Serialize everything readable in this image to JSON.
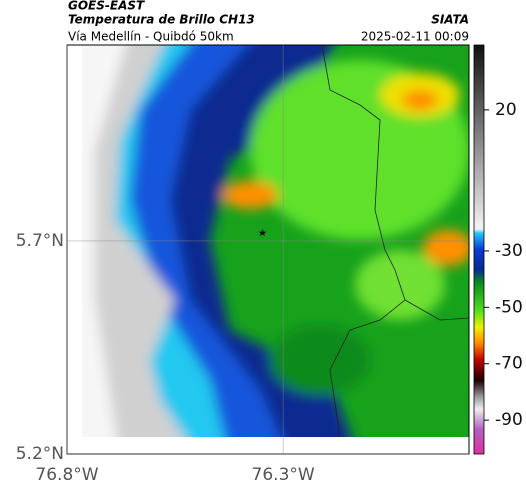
{
  "header": {
    "title": "GOES-EAST",
    "subtitle": "Temperatura de Brillo CH13",
    "route": "Vía Medellín - Quibdó 50km",
    "source": "SIATA",
    "timestamp": "2025-02-11 00:09"
  },
  "map": {
    "lat_lim": [
      5.2,
      6.16
    ],
    "lon_lim": [
      -76.8,
      -75.87
    ],
    "lat_ticks": [
      {
        "value": 5.2,
        "label": "5.2°N"
      },
      {
        "value": 5.7,
        "label": "5.7°N"
      }
    ],
    "lon_ticks": [
      {
        "value": -76.8,
        "label": "76.8°W"
      },
      {
        "value": -76.3,
        "label": "76.3°W"
      }
    ]
  },
  "colorbar": {
    "lim": [
      43,
      -102
    ],
    "ticks": [
      20,
      -30,
      -50,
      -70,
      -90
    ]
  }
}
